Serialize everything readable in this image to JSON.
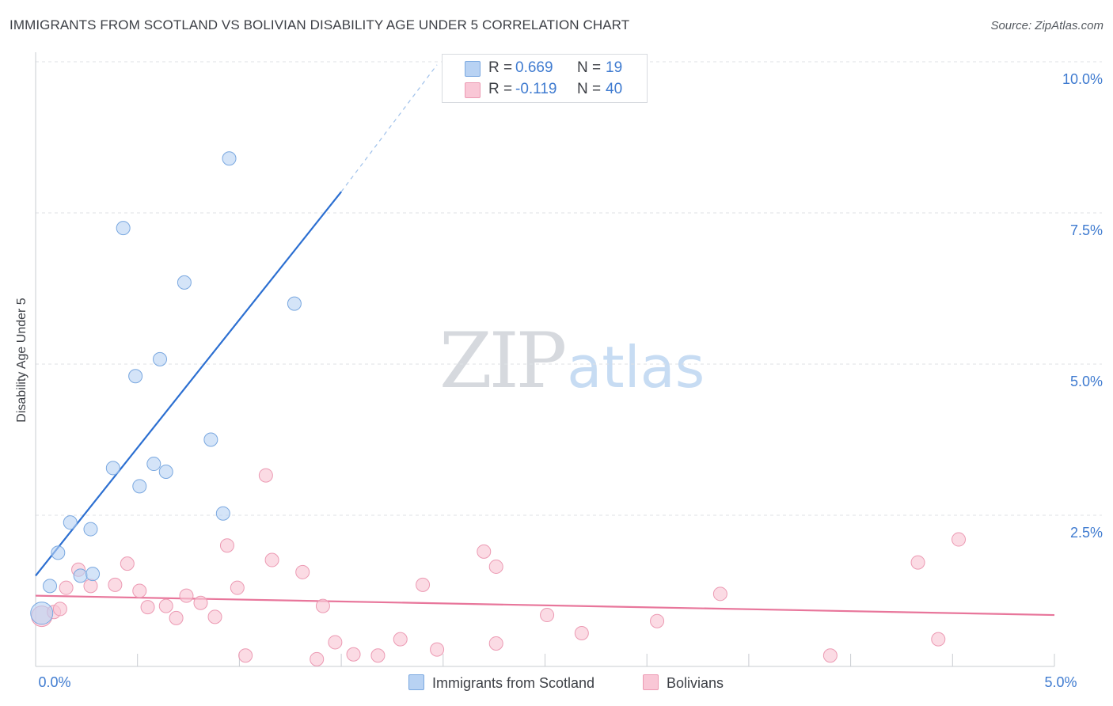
{
  "title": "IMMIGRANTS FROM SCOTLAND VS BOLIVIAN DISABILITY AGE UNDER 5 CORRELATION CHART",
  "source": "Source: ZipAtlas.com",
  "watermark": {
    "zip": "ZIP",
    "atlas": "atlas"
  },
  "colors": {
    "blue_fill": "#b8d2f3",
    "blue_stroke": "#7aa8e0",
    "blue_line": "#2c6fd1",
    "pink_fill": "#f9c7d6",
    "pink_stroke": "#ec9ab3",
    "pink_line": "#e8769b",
    "accent_text": "#3f7bd0"
  },
  "legend": {
    "rows": [
      {
        "r_label": "R = ",
        "r_value": "0.669",
        "n_label": "N = ",
        "n_value": "19"
      },
      {
        "r_label": "R = ",
        "r_value": "-0.119",
        "n_label": "N = ",
        "n_value": "40"
      }
    ]
  },
  "bottom_legend": {
    "series1": "Immigrants from Scotland",
    "series2": "Bolivians"
  },
  "chart_data": {
    "type": "scatter",
    "title": "IMMIGRANTS FROM SCOTLAND VS BOLIVIAN DISABILITY AGE UNDER 5 CORRELATION CHART",
    "xlabel": "",
    "ylabel": "Disability Age Under 5",
    "xlim": [
      0,
      5
    ],
    "ylim": [
      0,
      10.0
    ],
    "x_tick_labels": [
      {
        "x": 0,
        "label": "0.0%"
      },
      {
        "x": 5,
        "label": "5.0%"
      }
    ],
    "y_tick_labels": [
      {
        "y": 2.5,
        "label": "2.5%"
      },
      {
        "y": 5.0,
        "label": "5.0%"
      },
      {
        "y": 7.5,
        "label": "7.5%"
      },
      {
        "y": 10.0,
        "label": "10.0%"
      }
    ],
    "grid": true,
    "series": [
      {
        "name": "Immigrants from Scotland",
        "r": 0.669,
        "n": 19,
        "trend": {
          "x0": 0,
          "y0": 1.5,
          "x1": 1.5,
          "y1": 7.85,
          "dash_to_x": 1.97,
          "dash_to_y": 9.95
        },
        "points": [
          {
            "x": 0.07,
            "y": 1.33
          },
          {
            "x": 0.11,
            "y": 1.88
          },
          {
            "x": 0.17,
            "y": 2.38
          },
          {
            "x": 0.22,
            "y": 1.5
          },
          {
            "x": 0.27,
            "y": 2.27
          },
          {
            "x": 0.28,
            "y": 1.53
          },
          {
            "x": 0.38,
            "y": 3.28
          },
          {
            "x": 0.43,
            "y": 7.25
          },
          {
            "x": 0.49,
            "y": 4.8
          },
          {
            "x": 0.51,
            "y": 2.98
          },
          {
            "x": 0.58,
            "y": 3.35
          },
          {
            "x": 0.61,
            "y": 5.08
          },
          {
            "x": 0.64,
            "y": 3.22
          },
          {
            "x": 0.73,
            "y": 6.35
          },
          {
            "x": 0.86,
            "y": 3.75
          },
          {
            "x": 0.92,
            "y": 2.53
          },
          {
            "x": 0.95,
            "y": 8.4
          },
          {
            "x": 1.27,
            "y": 6.0
          },
          {
            "x": 0.03,
            "y": 0.88
          }
        ]
      },
      {
        "name": "Bolivians",
        "r": -0.119,
        "n": 40,
        "trend": {
          "x0": 0,
          "y0": 1.17,
          "x1": 5,
          "y1": 0.85
        },
        "points": [
          {
            "x": 0.03,
            "y": 0.83
          },
          {
            "x": 0.09,
            "y": 0.9
          },
          {
            "x": 0.15,
            "y": 1.3
          },
          {
            "x": 0.21,
            "y": 1.6
          },
          {
            "x": 0.27,
            "y": 1.33
          },
          {
            "x": 0.39,
            "y": 1.35
          },
          {
            "x": 0.45,
            "y": 1.7
          },
          {
            "x": 0.51,
            "y": 1.25
          },
          {
            "x": 0.55,
            "y": 0.98
          },
          {
            "x": 0.64,
            "y": 1.0
          },
          {
            "x": 0.69,
            "y": 0.8
          },
          {
            "x": 0.74,
            "y": 1.17
          },
          {
            "x": 0.81,
            "y": 1.05
          },
          {
            "x": 0.88,
            "y": 0.82
          },
          {
            "x": 0.94,
            "y": 2.0
          },
          {
            "x": 0.99,
            "y": 1.3
          },
          {
            "x": 1.03,
            "y": 0.18
          },
          {
            "x": 1.13,
            "y": 3.16
          },
          {
            "x": 1.16,
            "y": 1.76
          },
          {
            "x": 1.31,
            "y": 1.56
          },
          {
            "x": 1.38,
            "y": 0.12
          },
          {
            "x": 1.41,
            "y": 1.0
          },
          {
            "x": 1.47,
            "y": 0.4
          },
          {
            "x": 1.56,
            "y": 0.2
          },
          {
            "x": 1.68,
            "y": 0.18
          },
          {
            "x": 1.79,
            "y": 0.45
          },
          {
            "x": 1.9,
            "y": 1.35
          },
          {
            "x": 1.97,
            "y": 0.28
          },
          {
            "x": 2.2,
            "y": 1.9
          },
          {
            "x": 2.26,
            "y": 1.65
          },
          {
            "x": 2.26,
            "y": 0.38
          },
          {
            "x": 2.51,
            "y": 0.85
          },
          {
            "x": 2.68,
            "y": 0.55
          },
          {
            "x": 3.05,
            "y": 0.75
          },
          {
            "x": 3.36,
            "y": 1.2
          },
          {
            "x": 3.9,
            "y": 0.18
          },
          {
            "x": 4.33,
            "y": 1.72
          },
          {
            "x": 4.43,
            "y": 0.45
          },
          {
            "x": 4.53,
            "y": 2.1
          },
          {
            "x": 0.12,
            "y": 0.95
          }
        ]
      }
    ]
  }
}
